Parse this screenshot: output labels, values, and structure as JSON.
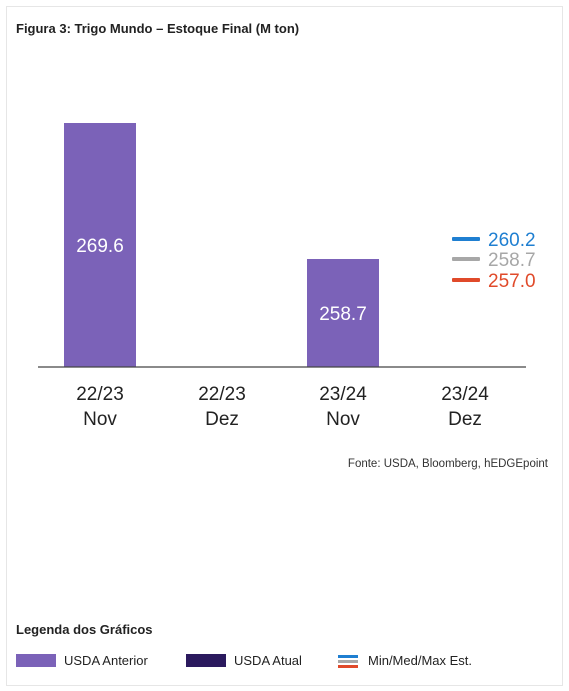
{
  "title": "Figura 3: Trigo Mundo – Estoque Final (M ton)",
  "source": "Fonte: USDA, Bloomberg, hEDGEpoint",
  "colors": {
    "usda_anterior": "#7B62B8",
    "usda_atual": "#2B1A5E",
    "min": "#E04A2A",
    "med": "#A7A7A7",
    "max": "#1F7FD1"
  },
  "chart_data": {
    "type": "bar",
    "categories": [
      [
        "22/23",
        "Nov"
      ],
      [
        "22/23",
        "Dez"
      ],
      [
        "23/24",
        "Nov"
      ],
      [
        "23/24",
        "Dez"
      ]
    ],
    "series": [
      {
        "name": "USDA Anterior",
        "values": [
          269.6,
          null,
          258.7,
          null
        ]
      },
      {
        "name": "USDA Atual",
        "values": [
          null,
          null,
          null,
          null
        ]
      }
    ],
    "data_labels": [
      "269.6",
      null,
      "258.7",
      null
    ],
    "estimates": {
      "category_index": 3,
      "max": 260.2,
      "med": 258.7,
      "min": 257.0,
      "labels": {
        "max": "260.2",
        "med": "258.7",
        "min": "257.0"
      }
    }
  },
  "legend": {
    "title": "Legenda dos Gráficos",
    "items": [
      {
        "label": "USDA Anterior",
        "color": "#7B62B8"
      },
      {
        "label": "USDA Atual",
        "color": "#2B1A5E"
      },
      {
        "label": "Min/Med/Max Est.",
        "icon": "min-med-max-lines"
      }
    ]
  }
}
